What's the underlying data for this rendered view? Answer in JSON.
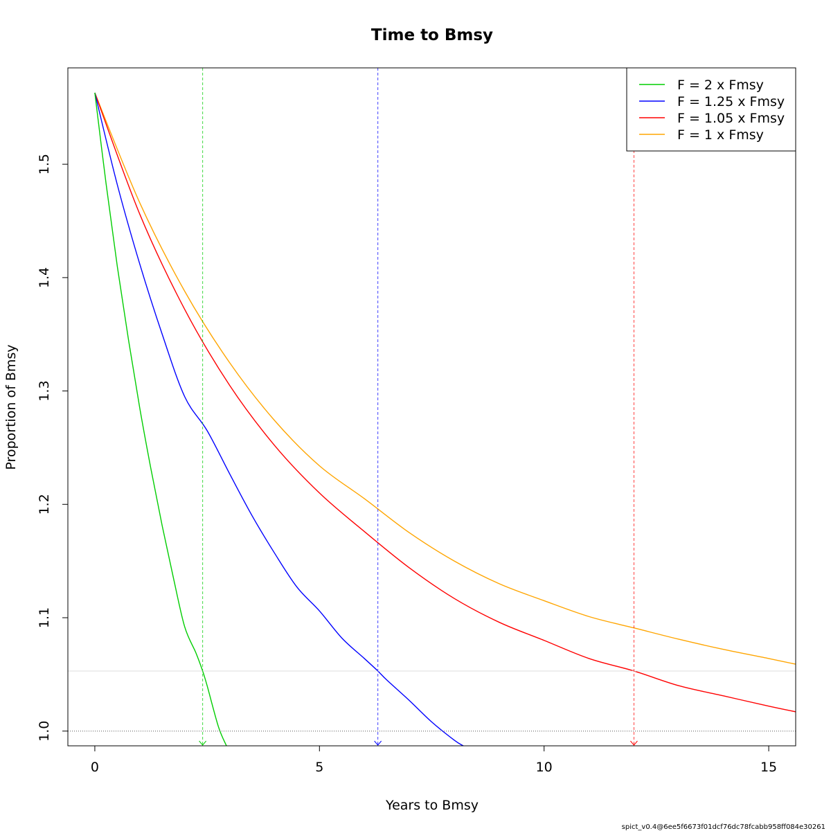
{
  "chart_data": {
    "type": "line",
    "title": "Time to Bmsy",
    "xlabel": "Years to Bmsy",
    "ylabel": "Proportion of Bmsy",
    "xlim": [
      -0.6,
      15.6
    ],
    "ylim": [
      0.987,
      1.585
    ],
    "xticks": [
      0,
      5,
      10,
      15
    ],
    "yticks": [
      1.0,
      1.1,
      1.2,
      1.3,
      1.4,
      1.5
    ],
    "ytick_labels": [
      "1.0",
      "1.1",
      "1.2",
      "1.3",
      "1.4",
      "1.5"
    ],
    "grid": false,
    "legend_position": "top-right",
    "reference_lines": {
      "bmsy_level": 1.0,
      "threshold_level": 1.053
    },
    "series": [
      {
        "name": "F = 2 x Fmsy",
        "color": "#00cd00",
        "x": [
          0,
          0.25,
          0.5,
          0.75,
          1.0,
          1.25,
          1.5,
          1.75,
          2.0,
          2.25,
          2.4,
          2.5,
          2.75,
          2.93
        ],
        "y": [
          1.563,
          1.483,
          1.41,
          1.345,
          1.285,
          1.231,
          1.181,
          1.135,
          1.092,
          1.069,
          1.053,
          1.04,
          1.004,
          0.987
        ],
        "target_year": 2.4
      },
      {
        "name": "F = 1.25 x Fmsy",
        "color": "#0000ff",
        "x": [
          0,
          0.5,
          1.0,
          1.5,
          2.0,
          2.5,
          3.0,
          3.5,
          4.0,
          4.5,
          5.0,
          5.5,
          6.0,
          6.3,
          6.5,
          7.0,
          7.5,
          8.0,
          8.2
        ],
        "y": [
          1.563,
          1.482,
          1.412,
          1.35,
          1.295,
          1.265,
          1.227,
          1.19,
          1.157,
          1.127,
          1.106,
          1.082,
          1.064,
          1.053,
          1.045,
          1.027,
          1.008,
          0.992,
          0.987
        ],
        "target_year": 6.3
      },
      {
        "name": "F = 1.05 x Fmsy",
        "color": "#ff0000",
        "x": [
          0,
          1,
          2,
          3,
          4,
          5,
          6,
          7,
          8,
          9,
          10,
          11,
          12,
          13,
          14,
          15,
          15.6
        ],
        "y": [
          1.563,
          1.456,
          1.372,
          1.305,
          1.252,
          1.21,
          1.176,
          1.144,
          1.117,
          1.096,
          1.08,
          1.064,
          1.053,
          1.04,
          1.031,
          1.022,
          1.017
        ],
        "target_year": 12.0
      },
      {
        "name": "F = 1 x Fmsy",
        "color": "#ffa500",
        "x": [
          0,
          1,
          2,
          3,
          4,
          5,
          6,
          7,
          8,
          9,
          10,
          11,
          12,
          13,
          14,
          15,
          15.6
        ],
        "y": [
          1.563,
          1.466,
          1.388,
          1.325,
          1.274,
          1.234,
          1.205,
          1.175,
          1.15,
          1.13,
          1.115,
          1.101,
          1.091,
          1.081,
          1.072,
          1.064,
          1.059
        ]
      }
    ],
    "footnote": "spict_v0.4@6ee5f6673f01dcf76dc78fcabb958ff084e30261"
  }
}
